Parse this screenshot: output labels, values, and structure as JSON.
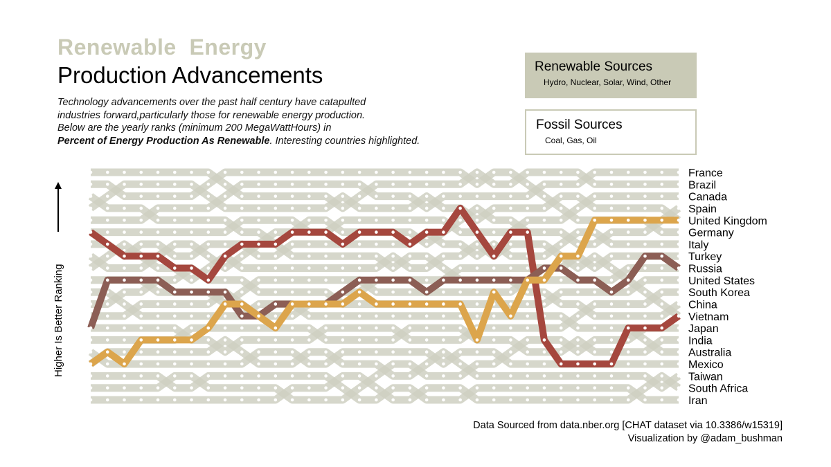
{
  "title": {
    "line1": "Renewable  Energy",
    "line2": "Production Advancements"
  },
  "description": {
    "line1": "Technology advancements over the past half century have catapulted",
    "line2": "industries forward,particularly those for renewable energy production.",
    "line3": "Below are the yearly ranks (minimum 200 MegaWattHours) in",
    "line4_bold": "Percent of Energy Production As Renewable",
    "line4_rest": ". Interesting countries highlighted."
  },
  "legend": {
    "renewable": {
      "title": "Renewable Sources",
      "subtitle": "Hydro, Nuclear, Solar, Wind, Other",
      "color": "#c9cab6"
    },
    "fossil": {
      "title": "Fossil Sources",
      "subtitle": "Coal, Gas, Oil"
    }
  },
  "y_axis_label": "Higher Is Better Ranking",
  "credits": {
    "line1": "Data Sourced from data.nber.org [CHAT dataset via 10.3386/w15319]",
    "line2": "Visualization by @adam_bushman"
  },
  "colors": {
    "background_lines": "#cfd0c2",
    "highlight_red": "#a5473e",
    "highlight_brown": "#8c5e55",
    "highlight_gold": "#dca54c"
  },
  "chart_data": {
    "type": "line",
    "subtype": "bump",
    "countries": [
      "France",
      "Brazil",
      "Canada",
      "Spain",
      "United Kingdom",
      "Germany",
      "Italy",
      "Turkey",
      "Russia",
      "United States",
      "South Korea",
      "China",
      "Vietnam",
      "Japan",
      "India",
      "Australia",
      "Mexico",
      "Taiwan",
      "South Africa",
      "Iran"
    ],
    "num_years": 36,
    "rank_range": [
      1,
      20
    ],
    "highlighted_series": [
      {
        "color": "#a5473e",
        "ranks": [
          6,
          7,
          8,
          8,
          8,
          9,
          9,
          10,
          8,
          7,
          7,
          7,
          6,
          6,
          6,
          7,
          6,
          6,
          6,
          7,
          6,
          6,
          4,
          6,
          8,
          6,
          6,
          15,
          17,
          17,
          17,
          17,
          14,
          14,
          14,
          13
        ]
      },
      {
        "color": "#8c5e55",
        "ranks": [
          14,
          10,
          10,
          10,
          10,
          11,
          11,
          11,
          11,
          13,
          13,
          12,
          12,
          12,
          12,
          11,
          10,
          10,
          10,
          10,
          11,
          10,
          10,
          10,
          10,
          10,
          10,
          9,
          9,
          10,
          10,
          11,
          10,
          8,
          8,
          9
        ]
      },
      {
        "color": "#dca54c",
        "ranks": [
          17,
          16,
          17,
          15,
          15,
          15,
          15,
          14,
          12,
          12,
          13,
          14,
          12,
          12,
          12,
          12,
          11,
          12,
          12,
          12,
          12,
          12,
          12,
          15,
          11,
          13,
          10,
          10,
          8,
          8,
          5,
          5,
          5,
          5,
          5,
          5
        ]
      }
    ]
  }
}
